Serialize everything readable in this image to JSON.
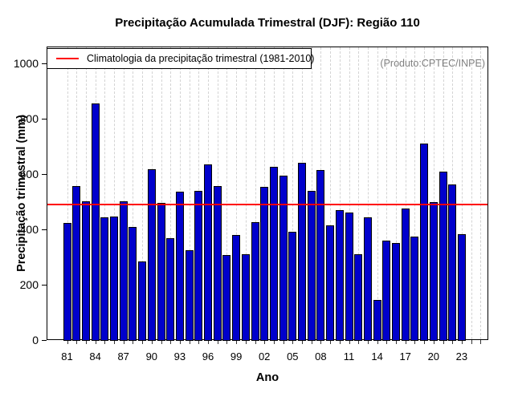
{
  "chart_data": {
    "type": "bar",
    "title": "Precipitação Acumulada Trimestral (DJF): Região 110",
    "xlabel": "Ano",
    "ylabel": "Precipitação trimestral (mm)",
    "ylim": [
      0,
      1060
    ],
    "yticks": [
      0,
      200,
      400,
      600,
      800,
      1000
    ],
    "grid": "vertical-dashed",
    "legend_position": "top-left",
    "bar_color": "#0000CC",
    "bar_border_color": "#000000",
    "annotation": "(Produto:CPTEC/INPE)",
    "climatology": {
      "label": "Climatologia da precipitação trimestral (1981-2010)",
      "value": 495,
      "color": "#FF0000"
    },
    "axis_year_range": [
      1981,
      2025
    ],
    "x_ticks": [
      {
        "year": 1981,
        "label": "81"
      },
      {
        "year": 1984,
        "label": "84"
      },
      {
        "year": 1987,
        "label": "87"
      },
      {
        "year": 1990,
        "label": "90"
      },
      {
        "year": 1993,
        "label": "93"
      },
      {
        "year": 1996,
        "label": "96"
      },
      {
        "year": 1999,
        "label": "99"
      },
      {
        "year": 2002,
        "label": "02"
      },
      {
        "year": 2005,
        "label": "05"
      },
      {
        "year": 2008,
        "label": "08"
      },
      {
        "year": 2011,
        "label": "11"
      },
      {
        "year": 2014,
        "label": "14"
      },
      {
        "year": 2017,
        "label": "17"
      },
      {
        "year": 2020,
        "label": "20"
      },
      {
        "year": 2023,
        "label": "23"
      }
    ],
    "categories": [
      1981,
      1982,
      1983,
      1984,
      1985,
      1986,
      1987,
      1988,
      1989,
      1990,
      1991,
      1992,
      1993,
      1994,
      1995,
      1996,
      1997,
      1998,
      1999,
      2000,
      2001,
      2002,
      2003,
      2004,
      2005,
      2006,
      2007,
      2008,
      2009,
      2010,
      2011,
      2012,
      2013,
      2014,
      2015,
      2016,
      2017,
      2018,
      2019,
      2020,
      2021,
      2022,
      2023
    ],
    "values": [
      425,
      560,
      505,
      858,
      445,
      450,
      505,
      410,
      288,
      620,
      497,
      371,
      540,
      328,
      543,
      637,
      560,
      311,
      381,
      314,
      430,
      557,
      628,
      597,
      394,
      643,
      542,
      617,
      417,
      471,
      464,
      313,
      446,
      147,
      361,
      354,
      478,
      377,
      712,
      500,
      611,
      565,
      386
    ]
  },
  "colors": {
    "background": "#FFFFFF",
    "grid": "#D3D3D3",
    "annotation_gray": "#808080",
    "axis": "#000000"
  }
}
